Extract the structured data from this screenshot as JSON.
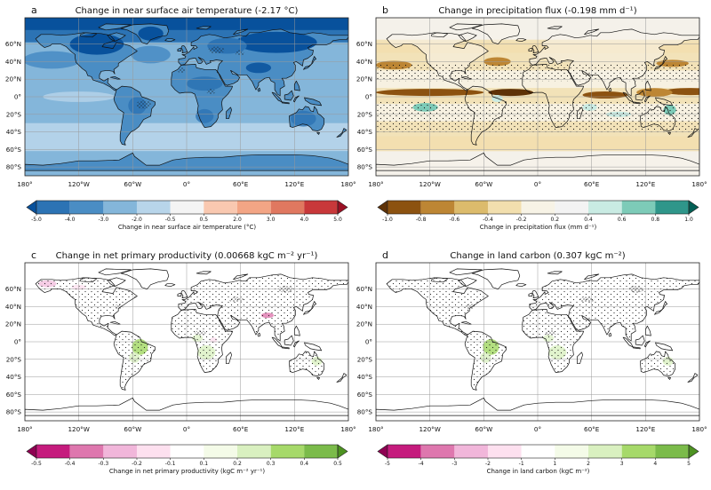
{
  "panels": [
    {
      "letter": "a",
      "title": "Change in near surface air temperature (-2.17 °C)",
      "style": "temperature",
      "colorbar": {
        "label": "Change in near surface air temperature (°C)",
        "ticks": [
          "-5.0",
          "-4.0",
          "-3.0",
          "-2.0",
          "-0.5",
          "0.5",
          "2.0",
          "3.0",
          "4.0",
          "5.0"
        ],
        "colors": [
          "#08519c",
          "#2c73b4",
          "#4a8dc4",
          "#84b6da",
          "#b8d5ea",
          "#f4f4f4",
          "#f9c8b0",
          "#f3a585",
          "#e07860",
          "#c8383a",
          "#9b1024"
        ]
      }
    },
    {
      "letter": "b",
      "title": "Change in precipitation flux (-0.198 mm d⁻¹)",
      "style": "precipitation",
      "colorbar": {
        "label": "Change in precipitation flux (mm d⁻¹)",
        "ticks": [
          "-1.0",
          "-0.8",
          "-0.6",
          "-0.4",
          "-0.2",
          "0.2",
          "0.4",
          "0.6",
          "0.8",
          "1.0"
        ],
        "colors": [
          "#5e3207",
          "#8c5210",
          "#bd8634",
          "#dcbb6c",
          "#f2dfae",
          "#f7f3e6",
          "#f3f3f3",
          "#c9ebe3",
          "#7dcbb8",
          "#2f968a",
          "#035f55"
        ]
      }
    },
    {
      "letter": "c",
      "title": "Change in net primary productivity (0.00668 kgC m⁻² yr⁻¹)",
      "style": "npp",
      "colorbar": {
        "label": "Change in net primary productivity (kgC m⁻² yr⁻¹)",
        "ticks": [
          "-0.5",
          "-0.4",
          "-0.3",
          "-0.2",
          "-0.1",
          "0.1",
          "0.2",
          "0.3",
          "0.4",
          "0.5"
        ],
        "colors": [
          "#8e0152",
          "#c51b7d",
          "#de77ae",
          "#f1b6da",
          "#fde0ef",
          "#ffffff",
          "#f4fbe8",
          "#d9f0c0",
          "#a6d96a",
          "#7bbb4a",
          "#4d9221"
        ]
      }
    },
    {
      "letter": "d",
      "title": "Change in land carbon (0.307 kgC m⁻²)",
      "style": "carbon",
      "colorbar": {
        "label": "Change in land carbon (kgC m⁻²)",
        "ticks": [
          "-5",
          "-4",
          "-3",
          "-2",
          "-1",
          "1",
          "2",
          "3",
          "4",
          "5"
        ],
        "colors": [
          "#8e0152",
          "#c51b7d",
          "#de77ae",
          "#f1b6da",
          "#fde0ef",
          "#ffffff",
          "#f4fbe8",
          "#d9f0c0",
          "#a6d96a",
          "#7bbb4a",
          "#4d9221"
        ]
      }
    }
  ],
  "lat_ticks": [
    "60°N",
    "40°N",
    "20°N",
    "0°",
    "20°S",
    "40°S",
    "60°S",
    "80°S"
  ],
  "lat_values": [
    60,
    40,
    20,
    0,
    -20,
    -40,
    -60,
    -80
  ],
  "lon_ticks": [
    "180°",
    "120°W",
    "60°W",
    "0°",
    "60°E",
    "120°E",
    "180°"
  ],
  "lon_values": [
    -180,
    -120,
    -60,
    0,
    60,
    120,
    180
  ]
}
